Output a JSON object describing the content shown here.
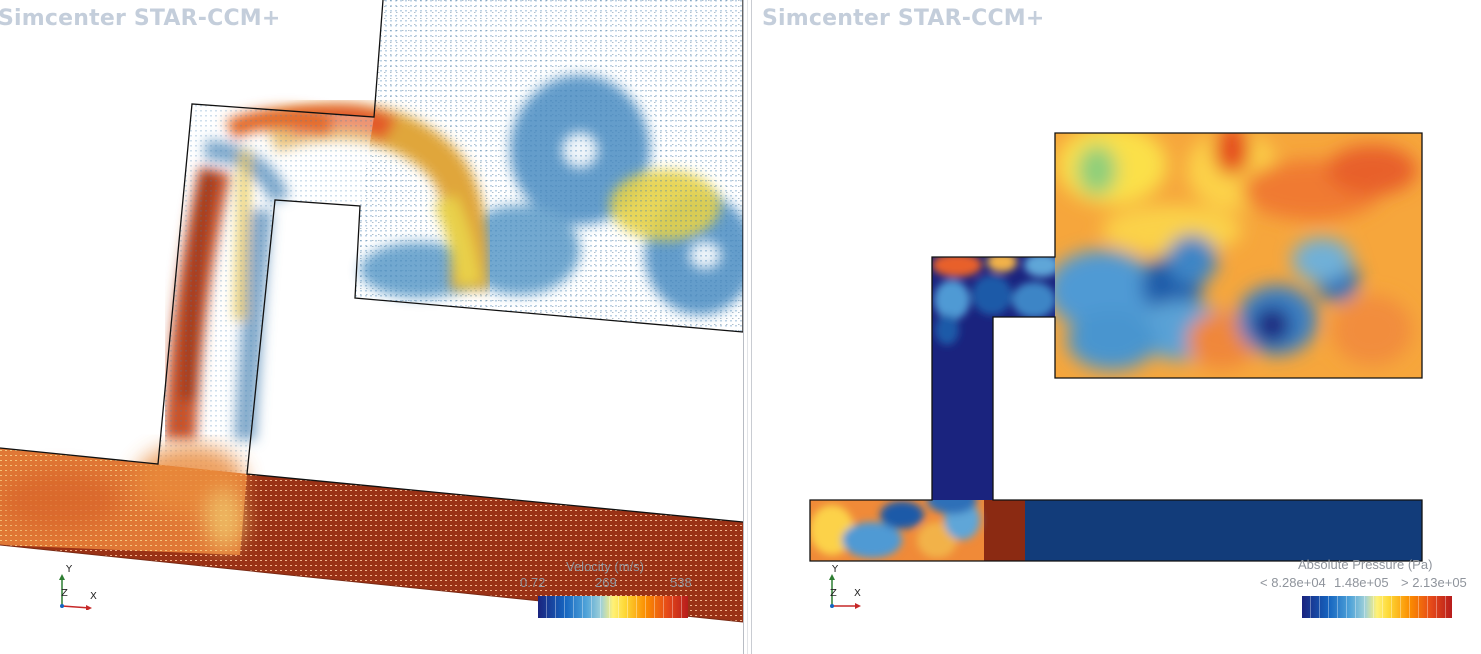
{
  "left_view": {
    "watermark": "Simcenter STAR-CCM+",
    "scalar": {
      "title": "Velocity (m/s)",
      "min_label": "0.72",
      "mid_label": "269",
      "max_label": "538"
    },
    "axes": {
      "y": "Y",
      "z": "Z",
      "x": "X"
    }
  },
  "right_view": {
    "watermark": "Simcenter STAR-CCM+",
    "scalar": {
      "title": "Absolute Pressure (Pa)",
      "min_label": "< 8.28e+04",
      "mid_label": "1.48e+05",
      "max_label": "> 2.13e+05"
    },
    "axes": {
      "y": "Y",
      "z": "Z",
      "x": "X"
    }
  },
  "colors": {
    "min": "#1a237e",
    "low": "#4fa3d9",
    "mid": "#fff176",
    "high": "#fb8c00",
    "max": "#b71c1c"
  }
}
